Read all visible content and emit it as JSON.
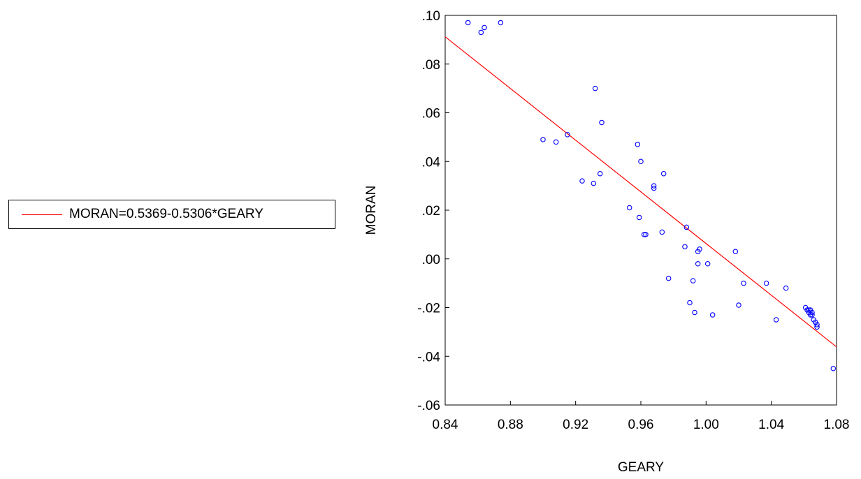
{
  "chart_data": {
    "type": "scatter",
    "title": "",
    "xlabel": "GEARY",
    "ylabel": "MORAN",
    "xlim": [
      0.84,
      1.08
    ],
    "ylim": [
      -0.06,
      0.1
    ],
    "x_ticks": [
      "0.84",
      "0.88",
      "0.92",
      "0.96",
      "1.00",
      "1.04",
      "1.08"
    ],
    "y_ticks": [
      ".10",
      ".08",
      ".06",
      ".04",
      ".02",
      ".00",
      "-.02",
      "-.04",
      "-.06"
    ],
    "x_tick_values": [
      0.84,
      0.88,
      0.92,
      0.96,
      1.0,
      1.04,
      1.08
    ],
    "y_tick_values": [
      0.1,
      0.08,
      0.06,
      0.04,
      0.02,
      0.0,
      -0.02,
      -0.04,
      -0.06
    ],
    "legend_position": "left",
    "grid": false,
    "series": [
      {
        "kind": "scatter",
        "color": "#0000ff",
        "marker": "circle-open",
        "x": [
          0.854,
          0.862,
          0.864,
          0.874,
          0.9,
          0.908,
          0.915,
          0.924,
          0.931,
          0.932,
          0.935,
          0.936,
          0.953,
          0.958,
          0.959,
          0.96,
          0.962,
          0.963,
          0.968,
          0.968,
          0.973,
          0.974,
          0.977,
          0.987,
          0.988,
          0.99,
          0.992,
          0.993,
          0.995,
          0.995,
          0.996,
          1.001,
          1.004,
          1.018,
          1.02,
          1.023,
          1.037,
          1.043,
          1.049,
          1.061,
          1.062,
          1.063,
          1.063,
          1.064,
          1.064,
          1.065,
          1.065,
          1.066,
          1.067,
          1.068,
          1.068,
          1.078
        ],
        "y": [
          0.097,
          0.093,
          0.095,
          0.097,
          0.049,
          0.048,
          0.051,
          0.032,
          0.031,
          0.07,
          0.035,
          0.056,
          0.021,
          0.047,
          0.017,
          0.04,
          0.01,
          0.01,
          0.03,
          0.029,
          0.011,
          0.035,
          -0.008,
          0.005,
          0.013,
          -0.018,
          -0.009,
          -0.022,
          0.003,
          -0.002,
          0.004,
          -0.002,
          -0.023,
          0.003,
          -0.019,
          -0.01,
          -0.01,
          -0.025,
          -0.012,
          -0.02,
          -0.021,
          -0.021,
          -0.022,
          -0.021,
          -0.023,
          -0.022,
          -0.023,
          -0.025,
          -0.026,
          -0.027,
          -0.028,
          -0.045
        ]
      },
      {
        "kind": "line",
        "name": "MORAN=0.5369-0.5306*GEARY",
        "color": "#ff0000",
        "intercept": 0.5369,
        "slope": -0.5306
      }
    ]
  }
}
